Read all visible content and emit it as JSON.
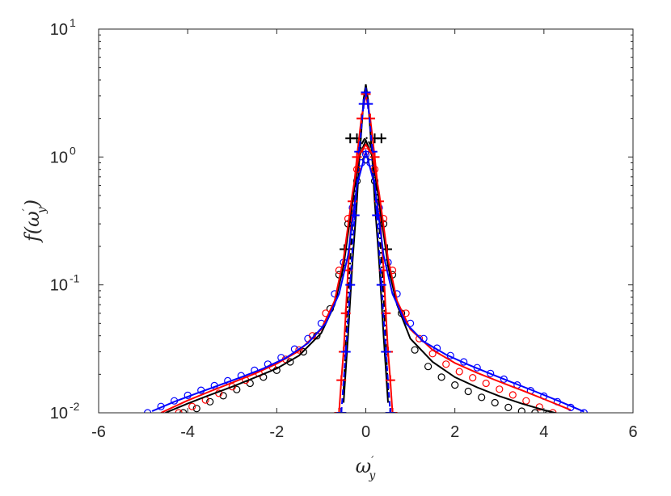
{
  "chart_data": {
    "type": "line",
    "title": "",
    "xlabel": "ω′_y",
    "ylabel": "f(ω′_y)",
    "xlabel_parts": {
      "base": "ω",
      "sup": "′",
      "sub": "y"
    },
    "ylabel_parts": {
      "pre": "f(",
      "base": "ω",
      "sup": "′",
      "sub": "y",
      "post": ")"
    },
    "xlim": [
      -6,
      6
    ],
    "ylim": [
      0.01,
      10
    ],
    "yscale": "log",
    "grid": false,
    "legend": "none",
    "x_ticks": [
      -6,
      -4,
      -2,
      0,
      2,
      4,
      6
    ],
    "x_tick_labels": [
      "-6",
      "-4",
      "-2",
      "0",
      "2",
      "4",
      "6"
    ],
    "y_ticks": [
      0.01,
      0.1,
      1,
      10
    ],
    "y_tick_labels": [
      {
        "base": "10",
        "exp": "-2"
      },
      {
        "base": "10",
        "exp": "-1"
      },
      {
        "base": "10",
        "exp": "0"
      },
      {
        "base": "10",
        "exp": "1"
      }
    ],
    "series": [
      {
        "color": "#000000",
        "style": "dashdot",
        "marker": "none",
        "x": [
          -0.5,
          -0.4,
          -0.3,
          -0.2,
          -0.1,
          0.0,
          0.1,
          0.2,
          0.3,
          0.4,
          0.5
        ],
        "y": [
          0.015,
          0.08,
          0.3,
          0.8,
          1.25,
          1.45,
          1.25,
          0.8,
          0.3,
          0.08,
          0.015
        ]
      },
      {
        "color": "#000000",
        "style": "solid",
        "marker": "none",
        "x": [
          -0.5,
          -0.4,
          -0.3,
          -0.2,
          -0.15,
          -0.1,
          -0.05,
          0.0,
          0.05,
          0.1,
          0.15,
          0.2,
          0.3,
          0.4,
          0.5
        ],
        "y": [
          0.012,
          0.04,
          0.15,
          0.45,
          0.9,
          1.6,
          2.8,
          3.7,
          2.8,
          1.6,
          0.9,
          0.45,
          0.15,
          0.04,
          0.012
        ]
      },
      {
        "color": "#000000",
        "style": "none",
        "marker": "plus",
        "x": [
          -0.55,
          -0.48,
          -0.35,
          0.35,
          0.48,
          0.55,
          -0.2,
          0.2
        ],
        "y": [
          0.01,
          0.19,
          1.4,
          1.4,
          0.19,
          0.01,
          1.4,
          1.4
        ]
      },
      {
        "color": "#ff0000",
        "style": "solid",
        "marker": "plus",
        "x": [
          -0.6,
          -0.55,
          -0.5,
          -0.45,
          -0.4,
          -0.3,
          -0.2,
          -0.1,
          0.0,
          0.1,
          0.2,
          0.3,
          0.4,
          0.45,
          0.5,
          0.55,
          0.6
        ],
        "y": [
          0.01,
          0.018,
          0.03,
          0.06,
          0.13,
          0.45,
          1.0,
          2.0,
          3.1,
          2.0,
          1.0,
          0.45,
          0.13,
          0.06,
          0.03,
          0.018,
          0.01
        ]
      },
      {
        "color": "#0000ff",
        "style": "dashed",
        "marker": "plus",
        "x": [
          -0.55,
          -0.45,
          -0.35,
          -0.25,
          -0.15,
          -0.05,
          0.0,
          0.05,
          0.15,
          0.25,
          0.35,
          0.45,
          0.55
        ],
        "y": [
          0.01,
          0.03,
          0.1,
          0.35,
          1.1,
          2.6,
          3.2,
          2.6,
          1.1,
          0.35,
          0.1,
          0.03,
          0.01
        ]
      },
      {
        "color": "#000000",
        "style": "none",
        "marker": "circle",
        "x": [
          -4.1,
          -3.8,
          -3.5,
          -3.2,
          -2.9,
          -2.6,
          -2.3,
          -2.0,
          -1.7,
          -1.4,
          -1.1,
          -0.8,
          -0.6,
          -0.4,
          -0.2,
          0.0,
          0.2,
          0.4,
          0.6,
          0.8,
          1.1,
          1.4,
          1.7,
          2.0,
          2.3,
          2.6,
          2.9,
          3.2,
          3.5,
          3.8,
          4.1
        ],
        "y": [
          0.01,
          0.0108,
          0.0122,
          0.0136,
          0.0152,
          0.017,
          0.019,
          0.0215,
          0.025,
          0.03,
          0.04,
          0.065,
          0.12,
          0.3,
          0.65,
          0.95,
          0.65,
          0.3,
          0.12,
          0.06,
          0.031,
          0.023,
          0.019,
          0.0165,
          0.0147,
          0.0132,
          0.012,
          0.011,
          0.0103,
          0.01,
          0.0098
        ]
      },
      {
        "color": "#ff0000",
        "style": "none",
        "marker": "circle",
        "x": [
          -4.2,
          -3.9,
          -3.6,
          -3.3,
          -3.0,
          -2.7,
          -2.4,
          -2.1,
          -1.8,
          -1.5,
          -1.2,
          -0.9,
          -0.6,
          -0.4,
          -0.2,
          0.0,
          0.2,
          0.4,
          0.6,
          0.9,
          1.2,
          1.5,
          1.8,
          2.1,
          2.4,
          2.7,
          3.0,
          3.3,
          3.6,
          3.9,
          4.2
        ],
        "y": [
          0.01,
          0.0112,
          0.0126,
          0.0142,
          0.016,
          0.018,
          0.0203,
          0.0228,
          0.0262,
          0.031,
          0.04,
          0.06,
          0.13,
          0.33,
          0.8,
          1.1,
          0.8,
          0.33,
          0.13,
          0.06,
          0.038,
          0.029,
          0.024,
          0.021,
          0.0188,
          0.017,
          0.0153,
          0.0138,
          0.0124,
          0.0111,
          0.01
        ]
      },
      {
        "color": "#0000ff",
        "style": "none",
        "marker": "circle",
        "x": [
          -4.9,
          -4.6,
          -4.3,
          -4.0,
          -3.7,
          -3.4,
          -3.1,
          -2.8,
          -2.5,
          -2.2,
          -1.9,
          -1.6,
          -1.3,
          -1.0,
          -0.7,
          -0.5,
          -0.3,
          -0.1,
          0.0,
          0.1,
          0.3,
          0.5,
          0.7,
          1.0,
          1.3,
          1.6,
          1.9,
          2.2,
          2.5,
          2.8,
          3.1,
          3.4,
          3.7,
          4.0,
          4.3,
          4.6,
          4.9
        ],
        "y": [
          0.01,
          0.0112,
          0.0124,
          0.0137,
          0.015,
          0.0163,
          0.0178,
          0.0195,
          0.0215,
          0.024,
          0.027,
          0.0315,
          0.038,
          0.05,
          0.085,
          0.15,
          0.4,
          0.9,
          1.05,
          0.9,
          0.4,
          0.15,
          0.085,
          0.05,
          0.038,
          0.032,
          0.028,
          0.025,
          0.0225,
          0.0203,
          0.0183,
          0.0165,
          0.0149,
          0.0135,
          0.0122,
          0.011,
          0.01
        ]
      },
      {
        "color": "#000000",
        "style": "solid",
        "marker": "none",
        "x": [
          -4.5,
          -4.0,
          -3.5,
          -3.0,
          -2.5,
          -2.0,
          -1.5,
          -1.0,
          -0.7,
          -0.5,
          -0.3,
          -0.15,
          0.0,
          0.15,
          0.3,
          0.5,
          0.7,
          1.0,
          1.5,
          2.0,
          2.5,
          3.0,
          3.5,
          4.0,
          4.5
        ],
        "y": [
          0.01,
          0.0118,
          0.0138,
          0.016,
          0.0188,
          0.0222,
          0.028,
          0.042,
          0.07,
          0.14,
          0.45,
          1.0,
          1.35,
          1.0,
          0.45,
          0.14,
          0.07,
          0.038,
          0.025,
          0.019,
          0.0158,
          0.0135,
          0.0118,
          0.0105,
          0.0095
        ]
      },
      {
        "color": "#ff0000",
        "style": "solid",
        "marker": "none",
        "x": [
          -4.6,
          -4.0,
          -3.5,
          -3.0,
          -2.5,
          -2.0,
          -1.5,
          -1.0,
          -0.7,
          -0.5,
          -0.3,
          -0.15,
          0.0,
          0.15,
          0.3,
          0.5,
          0.7,
          1.0,
          1.5,
          2.0,
          2.5,
          3.0,
          3.5,
          4.0,
          4.6
        ],
        "y": [
          0.01,
          0.0125,
          0.0147,
          0.0172,
          0.0202,
          0.0242,
          0.0305,
          0.045,
          0.075,
          0.16,
          0.52,
          1.05,
          1.25,
          1.05,
          0.52,
          0.16,
          0.075,
          0.045,
          0.031,
          0.0245,
          0.0205,
          0.0175,
          0.015,
          0.0128,
          0.0105
        ]
      },
      {
        "color": "#0000ff",
        "style": "solid",
        "marker": "none",
        "x": [
          -4.8,
          -4.3,
          -3.8,
          -3.3,
          -2.8,
          -2.3,
          -1.8,
          -1.3,
          -0.9,
          -0.6,
          -0.4,
          -0.2,
          0.0,
          0.2,
          0.4,
          0.6,
          0.9,
          1.3,
          1.8,
          2.3,
          2.8,
          3.3,
          3.8,
          4.3,
          4.9
        ],
        "y": [
          0.0103,
          0.0122,
          0.0142,
          0.0164,
          0.019,
          0.0222,
          0.0268,
          0.035,
          0.05,
          0.085,
          0.17,
          0.6,
          1.1,
          0.6,
          0.17,
          0.085,
          0.05,
          0.036,
          0.0285,
          0.0238,
          0.0202,
          0.0172,
          0.0147,
          0.0125,
          0.0102
        ]
      }
    ]
  }
}
